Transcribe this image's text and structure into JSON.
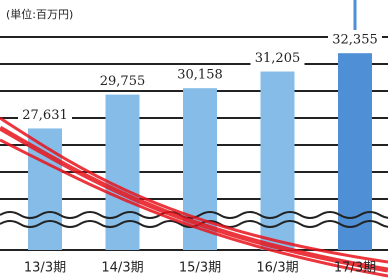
{
  "chart_data": {
    "type": "bar",
    "title": "(単位:百万円)",
    "categories": [
      "13/3期",
      "14/3期",
      "15/3期",
      "16/3期",
      "17/3期"
    ],
    "values": [
      27631,
      29755,
      30158,
      31205,
      32355
    ],
    "value_labels": [
      "27,631",
      "29,755",
      "30,158",
      "31,205",
      "32,355"
    ],
    "colors": [
      "#86bde8",
      "#86bde8",
      "#86bde8",
      "#86bde8",
      "#4f8fd6"
    ],
    "ylim": [
      20000,
      34000
    ]
  }
}
